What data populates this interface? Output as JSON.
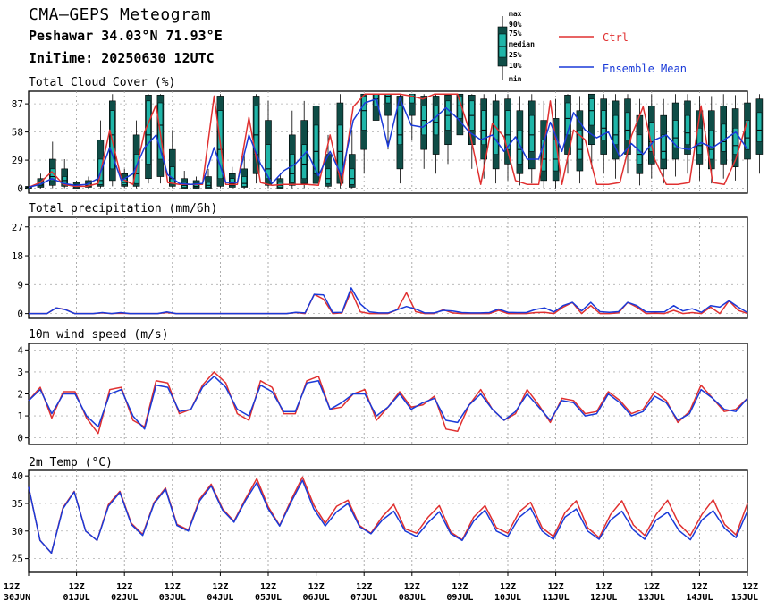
{
  "title": "CMA—GEPS Meteogram",
  "location": "Peshawar 34.03°N 71.93°E",
  "init_time": "IniTime: 20250630 12UTC",
  "legend": {
    "box_labels": [
      "max",
      "90%",
      "75%",
      "median",
      "25%",
      "10%",
      "min"
    ],
    "ctrl_label": "Ctrl",
    "mean_label": "Ensemble Mean",
    "ctrl_color": "#e03030",
    "mean_color": "#1a3ad8",
    "box_color": "#1fb5a8"
  },
  "x_ticks": [
    {
      "time": "12Z",
      "date": "30JUN"
    },
    {
      "time": "12Z",
      "date": "01JUL"
    },
    {
      "time": "12Z",
      "date": "02JUL"
    },
    {
      "time": "12Z",
      "date": "03JUL"
    },
    {
      "time": "12Z",
      "date": "04JUL"
    },
    {
      "time": "12Z",
      "date": "05JUL"
    },
    {
      "time": "12Z",
      "date": "06JUL"
    },
    {
      "time": "12Z",
      "date": "07JUL"
    },
    {
      "time": "12Z",
      "date": "08JUL"
    },
    {
      "time": "12Z",
      "date": "09JUL"
    },
    {
      "time": "12Z",
      "date": "10JUL"
    },
    {
      "time": "12Z",
      "date": "11JUL"
    },
    {
      "time": "12Z",
      "date": "12JUL"
    },
    {
      "time": "12Z",
      "date": "13JUL"
    },
    {
      "time": "12Z",
      "date": "14JUL"
    },
    {
      "time": "12Z",
      "date": "15JUL"
    }
  ],
  "chart_data": [
    {
      "type": "line",
      "title": "Total Cloud Cover (%)",
      "ylim": [
        -5,
        100
      ],
      "yticks": [
        0,
        29,
        58,
        87
      ],
      "step_hours": 6,
      "x_start": "2025-06-30 12Z",
      "ctrl": [
        1,
        6,
        17,
        4,
        2,
        2,
        5,
        60,
        10,
        4,
        58,
        86,
        6,
        4,
        4,
        4,
        95,
        4,
        4,
        73,
        6,
        3,
        4,
        4,
        4,
        3,
        55,
        3,
        84,
        97,
        97,
        97,
        97,
        95,
        92,
        97,
        97,
        97,
        60,
        4,
        67,
        53,
        8,
        4,
        4,
        90,
        4,
        60,
        50,
        4,
        4,
        6,
        54,
        84,
        30,
        4,
        4,
        6,
        85,
        6,
        4,
        30,
        70
      ],
      "mean": [
        1,
        4,
        10,
        5,
        3,
        4,
        10,
        42,
        8,
        15,
        42,
        55,
        14,
        5,
        4,
        5,
        42,
        6,
        6,
        55,
        25,
        5,
        18,
        25,
        38,
        13,
        38,
        13,
        70,
        88,
        92,
        43,
        93,
        65,
        63,
        72,
        83,
        72,
        58,
        50,
        55,
        38,
        53,
        30,
        30,
        68,
        38,
        78,
        60,
        52,
        58,
        32,
        46,
        35,
        50,
        55,
        42,
        40,
        47,
        42,
        50,
        58,
        40
      ],
      "boxes": [
        [
          0,
          0,
          0,
          1,
          1,
          2,
          3
        ],
        [
          0,
          1,
          3,
          4,
          6,
          10,
          15
        ],
        [
          0,
          3,
          8,
          12,
          20,
          30,
          48
        ],
        [
          0,
          2,
          5,
          8,
          12,
          20,
          30
        ],
        [
          0,
          0,
          1,
          2,
          4,
          6,
          8
        ],
        [
          0,
          1,
          2,
          3,
          5,
          8,
          12
        ],
        [
          0,
          2,
          4,
          8,
          30,
          50,
          70
        ],
        [
          2,
          8,
          20,
          55,
          80,
          90,
          97
        ],
        [
          0,
          2,
          4,
          6,
          10,
          15,
          20
        ],
        [
          0,
          2,
          5,
          15,
          35,
          55,
          70
        ],
        [
          5,
          10,
          25,
          55,
          90,
          96,
          97
        ],
        [
          5,
          12,
          30,
          65,
          88,
          96,
          97
        ],
        [
          0,
          2,
          5,
          10,
          22,
          40,
          60
        ],
        [
          0,
          0,
          1,
          3,
          6,
          10,
          18
        ],
        [
          0,
          0,
          1,
          2,
          5,
          8,
          12
        ],
        [
          0,
          0,
          1,
          3,
          6,
          12,
          20
        ],
        [
          0,
          2,
          10,
          40,
          80,
          95,
          97
        ],
        [
          0,
          1,
          3,
          5,
          10,
          15,
          22
        ],
        [
          0,
          1,
          2,
          5,
          12,
          20,
          35
        ],
        [
          5,
          15,
          35,
          55,
          85,
          95,
          97
        ],
        [
          0,
          3,
          10,
          20,
          45,
          70,
          90
        ],
        [
          0,
          0,
          1,
          3,
          6,
          10,
          15
        ],
        [
          0,
          3,
          6,
          15,
          35,
          55,
          80
        ],
        [
          0,
          5,
          10,
          25,
          45,
          70,
          90
        ],
        [
          0,
          5,
          15,
          38,
          65,
          85,
          95
        ],
        [
          0,
          2,
          5,
          10,
          20,
          35,
          55
        ],
        [
          0,
          5,
          15,
          38,
          65,
          88,
          97
        ],
        [
          0,
          1,
          4,
          10,
          20,
          35,
          60
        ],
        [
          15,
          40,
          60,
          80,
          95,
          97,
          97
        ],
        [
          40,
          70,
          85,
          92,
          97,
          97,
          97
        ],
        [
          40,
          75,
          88,
          95,
          97,
          97,
          97
        ],
        [
          5,
          20,
          45,
          55,
          85,
          95,
          97
        ],
        [
          50,
          75,
          88,
          95,
          97,
          97,
          97
        ],
        [
          20,
          40,
          55,
          70,
          85,
          95,
          97
        ],
        [
          15,
          35,
          55,
          68,
          85,
          95,
          97
        ],
        [
          25,
          45,
          60,
          75,
          90,
          96,
          97
        ],
        [
          30,
          55,
          72,
          85,
          95,
          97,
          97
        ],
        [
          20,
          45,
          60,
          75,
          90,
          96,
          97
        ],
        [
          10,
          30,
          45,
          60,
          80,
          92,
          97
        ],
        [
          5,
          20,
          35,
          50,
          75,
          90,
          97
        ],
        [
          8,
          25,
          40,
          55,
          80,
          92,
          97
        ],
        [
          3,
          15,
          25,
          40,
          60,
          80,
          95
        ],
        [
          5,
          20,
          38,
          55,
          75,
          90,
          97
        ],
        [
          0,
          8,
          18,
          30,
          50,
          70,
          90
        ],
        [
          0,
          8,
          18,
          30,
          50,
          72,
          92
        ],
        [
          15,
          35,
          55,
          72,
          88,
          96,
          97
        ],
        [
          5,
          18,
          30,
          40,
          60,
          80,
          95
        ],
        [
          20,
          45,
          65,
          80,
          92,
          97,
          97
        ],
        [
          15,
          35,
          50,
          62,
          80,
          92,
          97
        ],
        [
          10,
          30,
          45,
          55,
          75,
          90,
          97
        ],
        [
          15,
          35,
          50,
          60,
          78,
          92,
          97
        ],
        [
          3,
          15,
          25,
          35,
          55,
          75,
          92
        ],
        [
          10,
          25,
          38,
          48,
          68,
          85,
          97
        ],
        [
          5,
          20,
          30,
          38,
          55,
          75,
          92
        ],
        [
          12,
          30,
          42,
          52,
          70,
          88,
          97
        ],
        [
          15,
          35,
          45,
          57,
          75,
          90,
          97
        ],
        [
          8,
          25,
          35,
          44,
          62,
          80,
          95
        ],
        [
          5,
          20,
          30,
          40,
          60,
          80,
          95
        ],
        [
          10,
          25,
          38,
          48,
          66,
          85,
          97
        ],
        [
          8,
          22,
          35,
          44,
          62,
          82,
          96
        ],
        [
          12,
          30,
          40,
          52,
          70,
          88,
          97
        ],
        [
          15,
          35,
          48,
          60,
          78,
          92,
          97
        ],
        [
          5,
          20,
          30,
          40,
          60,
          82,
          95
        ]
      ]
    },
    {
      "type": "line",
      "title": "Total precipitation (mm/6h)",
      "ylim": [
        -1.5,
        30
      ],
      "yticks": [
        0,
        9,
        18,
        27
      ],
      "ctrl": [
        0,
        0,
        0,
        1.8,
        1.3,
        0,
        0,
        0,
        0.2,
        0,
        0.1,
        0,
        0,
        0,
        0,
        0.3,
        0,
        0,
        0,
        0,
        0,
        0,
        0,
        0,
        0,
        0,
        0,
        0,
        0,
        0.3,
        0,
        6,
        4.5,
        0,
        0.2,
        7,
        0.5,
        0,
        0,
        0,
        1.2,
        6.5,
        0.6,
        0,
        0,
        1.2,
        0.2,
        0,
        0,
        0,
        0,
        1,
        0,
        0,
        0,
        0.3,
        0.4,
        0,
        2,
        3.5,
        0,
        2.5,
        0,
        0,
        0.2,
        3.5,
        2,
        0,
        0.1,
        0,
        1,
        0,
        0.3,
        0,
        2,
        0,
        4,
        1,
        0
      ],
      "mean": [
        0,
        0,
        0,
        1.8,
        1.2,
        0,
        0,
        0,
        0.3,
        0,
        0.3,
        0,
        0,
        0,
        0,
        0.5,
        0,
        0,
        0,
        0,
        0,
        0,
        0,
        0,
        0,
        0,
        0,
        0,
        0,
        0.4,
        0.2,
        6,
        5.8,
        0.3,
        0.4,
        8,
        3,
        0.5,
        0.2,
        0.2,
        1.2,
        2.2,
        1.4,
        0.2,
        0.2,
        1,
        0.8,
        0.3,
        0.2,
        0.2,
        0.3,
        1.4,
        0.4,
        0.3,
        0.3,
        1.3,
        1.8,
        0.5,
        2.5,
        3.5,
        0.8,
        3.5,
        0.6,
        0.4,
        0.6,
        3.5,
        2.5,
        0.5,
        0.5,
        0.5,
        2.5,
        0.8,
        1.5,
        0.4,
        2.5,
        2,
        4,
        2,
        0.3
      ],
      "boxes": []
    },
    {
      "type": "line",
      "title": "10m wind speed (m/s)",
      "ylim": [
        -0.3,
        4.3
      ],
      "yticks": [
        0,
        1,
        2,
        3,
        4
      ],
      "ctrl": [
        1.7,
        2.3,
        0.9,
        2.1,
        2.1,
        0.9,
        0.2,
        2.2,
        2.3,
        0.8,
        0.5,
        2.6,
        2.5,
        1.1,
        1.3,
        2.4,
        3,
        2.5,
        1.1,
        0.8,
        2.6,
        2.3,
        1.1,
        1.1,
        2.6,
        2.8,
        1.3,
        1.4,
        2,
        2.2,
        0.8,
        1.4,
        2.1,
        1.4,
        1.5,
        1.9,
        0.4,
        0.3,
        1.5,
        2.2,
        1.3,
        0.8,
        1.1,
        2.2,
        1.5,
        0.7,
        1.8,
        1.7,
        1.1,
        1.2,
        2.1,
        1.7,
        1.1,
        1.3,
        2.1,
        1.7,
        0.7,
        1.2,
        2.4,
        1.8,
        1.2,
        1.3,
        1.8
      ],
      "mean": [
        1.7,
        2.2,
        1.1,
        2,
        2,
        1,
        0.5,
        2,
        2.2,
        1,
        0.4,
        2.4,
        2.3,
        1.2,
        1.3,
        2.3,
        2.8,
        2.3,
        1.3,
        1,
        2.4,
        2.1,
        1.2,
        1.2,
        2.5,
        2.6,
        1.3,
        1.6,
        2,
        2,
        1,
        1.4,
        2,
        1.3,
        1.6,
        1.8,
        0.8,
        0.7,
        1.5,
        2,
        1.3,
        0.8,
        1.2,
        2,
        1.4,
        0.8,
        1.7,
        1.6,
        1,
        1.1,
        2,
        1.6,
        1,
        1.2,
        1.9,
        1.6,
        0.8,
        1.1,
        2.2,
        1.8,
        1.3,
        1.2,
        1.8
      ],
      "boxes": []
    },
    {
      "type": "line",
      "title": "2m Temp (°C)",
      "ylim": [
        22.5,
        41
      ],
      "yticks": [
        25,
        30,
        35,
        40
      ],
      "ctrl": [
        38,
        28.3,
        26,
        34.2,
        37.2,
        30,
        28.3,
        34.8,
        37.2,
        31.4,
        29.4,
        35.2,
        37.8,
        31.2,
        30.2,
        35.8,
        38.5,
        34,
        31.8,
        35.8,
        39.5,
        34.4,
        31,
        35.6,
        39.8,
        34.7,
        31.4,
        34.5,
        35.6,
        31,
        29.6,
        32.6,
        34.8,
        30.4,
        29.6,
        32.5,
        34.6,
        29.8,
        28.4,
        32.5,
        34.6,
        30.6,
        29.6,
        33.5,
        35.2,
        30.6,
        29,
        33.3,
        35.5,
        30.6,
        28.8,
        33,
        35.5,
        31.1,
        29.2,
        33,
        35.6,
        31.3,
        29.2,
        33,
        35.7,
        31.2,
        29.3,
        35
      ],
      "mean": [
        38,
        28.3,
        26,
        34,
        37.1,
        30,
        28.3,
        34.5,
        37,
        31.2,
        29.2,
        35,
        37.6,
        31,
        30,
        35.5,
        38.2,
        33.8,
        31.6,
        35.5,
        38.8,
        34,
        30.9,
        35.2,
        39.2,
        34,
        30.9,
        33.5,
        35,
        30.8,
        29.5,
        32,
        33.6,
        30,
        29,
        31.5,
        33.5,
        29.5,
        28.3,
        31.8,
        33.8,
        30,
        29,
        32.5,
        34.2,
        30,
        28.5,
        32.5,
        34,
        30,
        28.5,
        32,
        33.6,
        30.2,
        28.5,
        32,
        33.4,
        30.1,
        28.4,
        32,
        33.7,
        30.5,
        28.8,
        33.6
      ],
      "boxes": []
    }
  ]
}
